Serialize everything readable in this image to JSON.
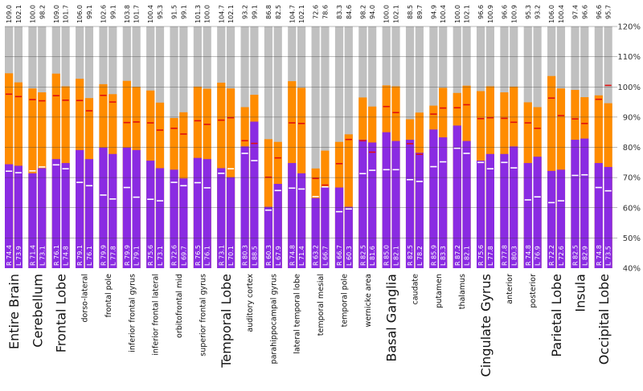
{
  "chart_data": {
    "type": "bar",
    "subtype": "paired-stacked-columns",
    "ylim": [
      40,
      120
    ],
    "yticks": [
      40,
      50,
      60,
      70,
      80,
      90,
      100,
      110,
      120
    ],
    "ytick_labels": [
      "40%",
      "50%",
      "60%",
      "70%",
      "80%",
      "90%",
      "100%",
      "110%",
      "120%"
    ],
    "colors": {
      "lower": "#8a2be2",
      "upper": "#ff8c00",
      "background": "#c0c0c0",
      "marker_red": "#e01010",
      "marker_white": "#ffffff",
      "grid": "#3a3a3a"
    },
    "regions": [
      {
        "label": "Entire Brain",
        "major": true,
        "top": [
          "109.0",
          "102.1"
        ],
        "inner": [
          "R 74.4",
          "L 73.9"
        ],
        "purple": [
          74.4,
          73.9
        ],
        "total": [
          104.5,
          101.5
        ],
        "red": [
          97.6,
          96.8
        ],
        "white": [
          72.1,
          71.6
        ]
      },
      {
        "label": "Cerebellum",
        "major": true,
        "top": [
          "100.0",
          "98.2"
        ],
        "inner": [
          "R 71.4",
          "L 73.1"
        ],
        "purple": [
          71.4,
          73.1
        ],
        "total": [
          99.5,
          98.2
        ],
        "red": [
          95.8,
          95.4
        ],
        "white": [
          72.2,
          73.5
        ]
      },
      {
        "label": "Frontal Lobe",
        "major": true,
        "top": [
          "109.0",
          "101.7"
        ],
        "inner": [
          "R 76.1",
          "L 74.8"
        ],
        "purple": [
          76.1,
          74.8
        ],
        "total": [
          104.4,
          100.2
        ],
        "red": [
          97.1,
          95.6
        ],
        "white": [
          74.2,
          72.9
        ]
      },
      {
        "label": "dorso-lateral",
        "major": false,
        "top": [
          "106.0",
          "99.1"
        ],
        "inner": [
          "R 79.1",
          "L 76.1"
        ],
        "purple": [
          79.1,
          76.1
        ],
        "total": [
          102.7,
          96.3
        ],
        "red": [
          95.5,
          92.1
        ],
        "white": [
          68.4,
          67.3
        ]
      },
      {
        "label": "frontal pole",
        "major": false,
        "top": [
          "102.6",
          "99.1"
        ],
        "inner": [
          "R 79.9",
          "L 77.8"
        ],
        "purple": [
          79.9,
          77.8
        ],
        "total": [
          100.9,
          97.6
        ],
        "red": [
          97.2,
          95.0
        ],
        "white": [
          64.2,
          62.9
        ]
      },
      {
        "label": "inferior frontal gyrus",
        "major": false,
        "top": [
          "103.8",
          "101.7"
        ],
        "inner": [
          "R 79.9",
          "L 79.1"
        ],
        "purple": [
          79.9,
          79.1
        ],
        "total": [
          102.0,
          100.0
        ],
        "red": [
          88.2,
          88.4
        ],
        "white": [
          66.7,
          63.5
        ]
      },
      {
        "label": "inferior frontal lateral",
        "major": false,
        "top": [
          "100.4",
          "95.3"
        ],
        "inner": [
          "R 75.6",
          "L 73.1"
        ],
        "purple": [
          75.6,
          73.1
        ],
        "total": [
          98.8,
          94.8
        ],
        "red": [
          88.1,
          85.7
        ],
        "white": [
          62.8,
          62.3
        ]
      },
      {
        "label": "orbitofrontal mid",
        "major": false,
        "top": [
          "91.5",
          "99.1"
        ],
        "inner": [
          "R 72.6",
          "L 69.7"
        ],
        "purple": [
          72.6,
          69.7
        ],
        "total": [
          89.7,
          91.6
        ],
        "red": [
          86.3,
          84.4
        ],
        "white": [
          68.4,
          67.3
        ]
      },
      {
        "label": "superior frontal gyrus",
        "major": false,
        "top": [
          "101.3",
          "100.0"
        ],
        "inner": [
          "R 76.5",
          "L 76.1"
        ],
        "purple": [
          76.5,
          76.1
        ],
        "total": [
          100.1,
          99.4
        ],
        "red": [
          88.8,
          87.6
        ],
        "white": [
          68.3,
          66.6
        ]
      },
      {
        "label": "Temporal Lobe",
        "major": true,
        "top": [
          "104.7",
          "102.1"
        ],
        "inner": [
          "R 73.1",
          "L 70.1"
        ],
        "purple": [
          73.1,
          70.1
        ],
        "total": [
          101.4,
          99.5
        ],
        "red": [
          89.0,
          89.8
        ],
        "white": [
          71.4,
          72.9
        ]
      },
      {
        "label": "auditory cortex",
        "major": false,
        "top": [
          "93.2",
          "99.1"
        ],
        "inner": [
          "R 80.3",
          "L 88.5"
        ],
        "purple": [
          80.3,
          88.5
        ],
        "total": [
          93.3,
          97.4
        ],
        "red": [
          82.2,
          81.3
        ],
        "white": [
          78.0,
          75.6
        ]
      },
      {
        "label": "parahippocampal gyrus",
        "major": false,
        "top": [
          "86.8",
          "82.5"
        ],
        "inner": [
          "R 60.3",
          "L 67.9"
        ],
        "purple": [
          60.3,
          67.9
        ],
        "total": [
          82.7,
          81.8
        ],
        "red": [
          70.1,
          76.5
        ],
        "white": [
          59.2,
          65.7
        ]
      },
      {
        "label": "lateral temporal lobe",
        "major": false,
        "top": [
          "104.7",
          "102.1"
        ],
        "inner": [
          "R 74.8",
          "L 71.4"
        ],
        "purple": [
          74.8,
          71.4
        ],
        "total": [
          101.9,
          99.7
        ],
        "red": [
          88.1,
          87.9
        ],
        "white": [
          66.5,
          66.2
        ]
      },
      {
        "label": "temporal mesial",
        "major": false,
        "top": [
          "72.6",
          "78.6"
        ],
        "inner": [
          "R 63.2",
          "L 66.7"
        ],
        "purple": [
          63.2,
          66.7
        ],
        "total": [
          73.0,
          78.9
        ],
        "red": [
          69.7,
          67.5
        ],
        "white": [
          63.7,
          66.9
        ]
      },
      {
        "label": "temporal pole",
        "major": false,
        "top": [
          "83.3",
          "84.6"
        ],
        "inner": [
          "R 66.7",
          "L 60.3"
        ],
        "purple": [
          66.7,
          60.3
        ],
        "total": [
          81.8,
          84.3
        ],
        "red": [
          74.6,
          82.6
        ],
        "white": [
          58.7,
          59.6
        ]
      },
      {
        "label": "wernicke area",
        "major": false,
        "top": [
          "98.2",
          "94.0"
        ],
        "inner": [
          "R 82.5",
          "L 81.6"
        ],
        "purple": [
          82.5,
          81.6
        ],
        "total": [
          96.5,
          93.5
        ],
        "red": [
          82.2,
          78.4
        ],
        "white": [
          71.3,
          72.4
        ]
      },
      {
        "label": "Basal Ganglia",
        "major": true,
        "top": [
          "100.0",
          "102.1"
        ],
        "inner": [
          "R 85.0",
          "L 82.1"
        ],
        "purple": [
          85.0,
          82.1
        ],
        "total": [
          100.5,
          100.2
        ],
        "red": [
          93.5,
          91.5
        ],
        "white": [
          72.6,
          72.6
        ]
      },
      {
        "label": "caudate",
        "major": false,
        "top": [
          "88.5",
          "89.7"
        ],
        "inner": [
          "R 82.5",
          "L 78.2"
        ],
        "purple": [
          82.5,
          78.2
        ],
        "total": [
          89.3,
          91.5
        ],
        "red": [
          81.2,
          77.7
        ],
        "white": [
          69.3,
          68.7
        ]
      },
      {
        "label": "putamen",
        "major": false,
        "top": [
          "94.9",
          "100.4"
        ],
        "inner": [
          "R 85.9",
          "L 83.3"
        ],
        "purple": [
          85.9,
          83.3
        ],
        "total": [
          93.8,
          99.7
        ],
        "red": [
          91.0,
          93.0
        ],
        "white": [
          73.6,
          75.2
        ]
      },
      {
        "label": "thalamus",
        "major": false,
        "top": [
          "100.0",
          "102.1"
        ],
        "inner": [
          "R 87.2",
          "L 82.1"
        ],
        "purple": [
          87.2,
          82.1
        ],
        "total": [
          98.0,
          100.4
        ],
        "red": [
          93.1,
          94.1
        ],
        "white": [
          79.7,
          78.0
        ]
      },
      {
        "label": "Cingulate Gyrus",
        "major": true,
        "top": [
          "96.6",
          "100.9"
        ],
        "inner": [
          "R 75.6",
          "L 77.8"
        ],
        "purple": [
          75.6,
          77.8
        ],
        "total": [
          98.6,
          100.2
        ],
        "red": [
          89.5,
          89.8
        ],
        "white": [
          75.0,
          72.9
        ]
      },
      {
        "label": "anterior",
        "major": false,
        "top": [
          "96.6",
          "100.9"
        ],
        "inner": [
          "R 77.8",
          "L 80.3"
        ],
        "purple": [
          77.8,
          80.3
        ],
        "total": [
          98.2,
          100.1
        ],
        "red": [
          89.6,
          88.3
        ],
        "white": [
          75.0,
          73.2
        ]
      },
      {
        "label": "posterior",
        "major": false,
        "top": [
          "95.3",
          "93.2"
        ],
        "inner": [
          "R 74.8",
          "L 76.9"
        ],
        "purple": [
          74.8,
          76.9
        ],
        "total": [
          94.9,
          93.3
        ],
        "red": [
          88.1,
          86.3
        ],
        "white": [
          62.6,
          63.6
        ]
      },
      {
        "label": "Parietal Lobe",
        "major": true,
        "top": [
          "106.0",
          "100.4"
        ],
        "inner": [
          "R 72.2",
          "L 72.6"
        ],
        "purple": [
          72.2,
          72.6
        ],
        "total": [
          103.6,
          99.5
        ],
        "red": [
          96.3,
          90.5
        ],
        "white": [
          61.7,
          62.3
        ]
      },
      {
        "label": "Insula",
        "major": true,
        "top": [
          "97.4",
          "96.6"
        ],
        "inner": [
          "R 82.5",
          "L 82.9"
        ],
        "purple": [
          82.5,
          82.9
        ],
        "total": [
          99.0,
          96.6
        ],
        "red": [
          89.4,
          87.9
        ],
        "white": [
          70.7,
          70.9
        ]
      },
      {
        "label": "Occipital Lobe",
        "major": true,
        "top": [
          "96.6",
          "95.7"
        ],
        "inner": [
          "R 74.8",
          "L 73.5"
        ],
        "purple": [
          74.8,
          73.5
        ],
        "total": [
          97.2,
          94.6
        ],
        "red": [
          95.9,
          100.5
        ],
        "white": [
          66.7,
          65.6
        ]
      }
    ]
  }
}
